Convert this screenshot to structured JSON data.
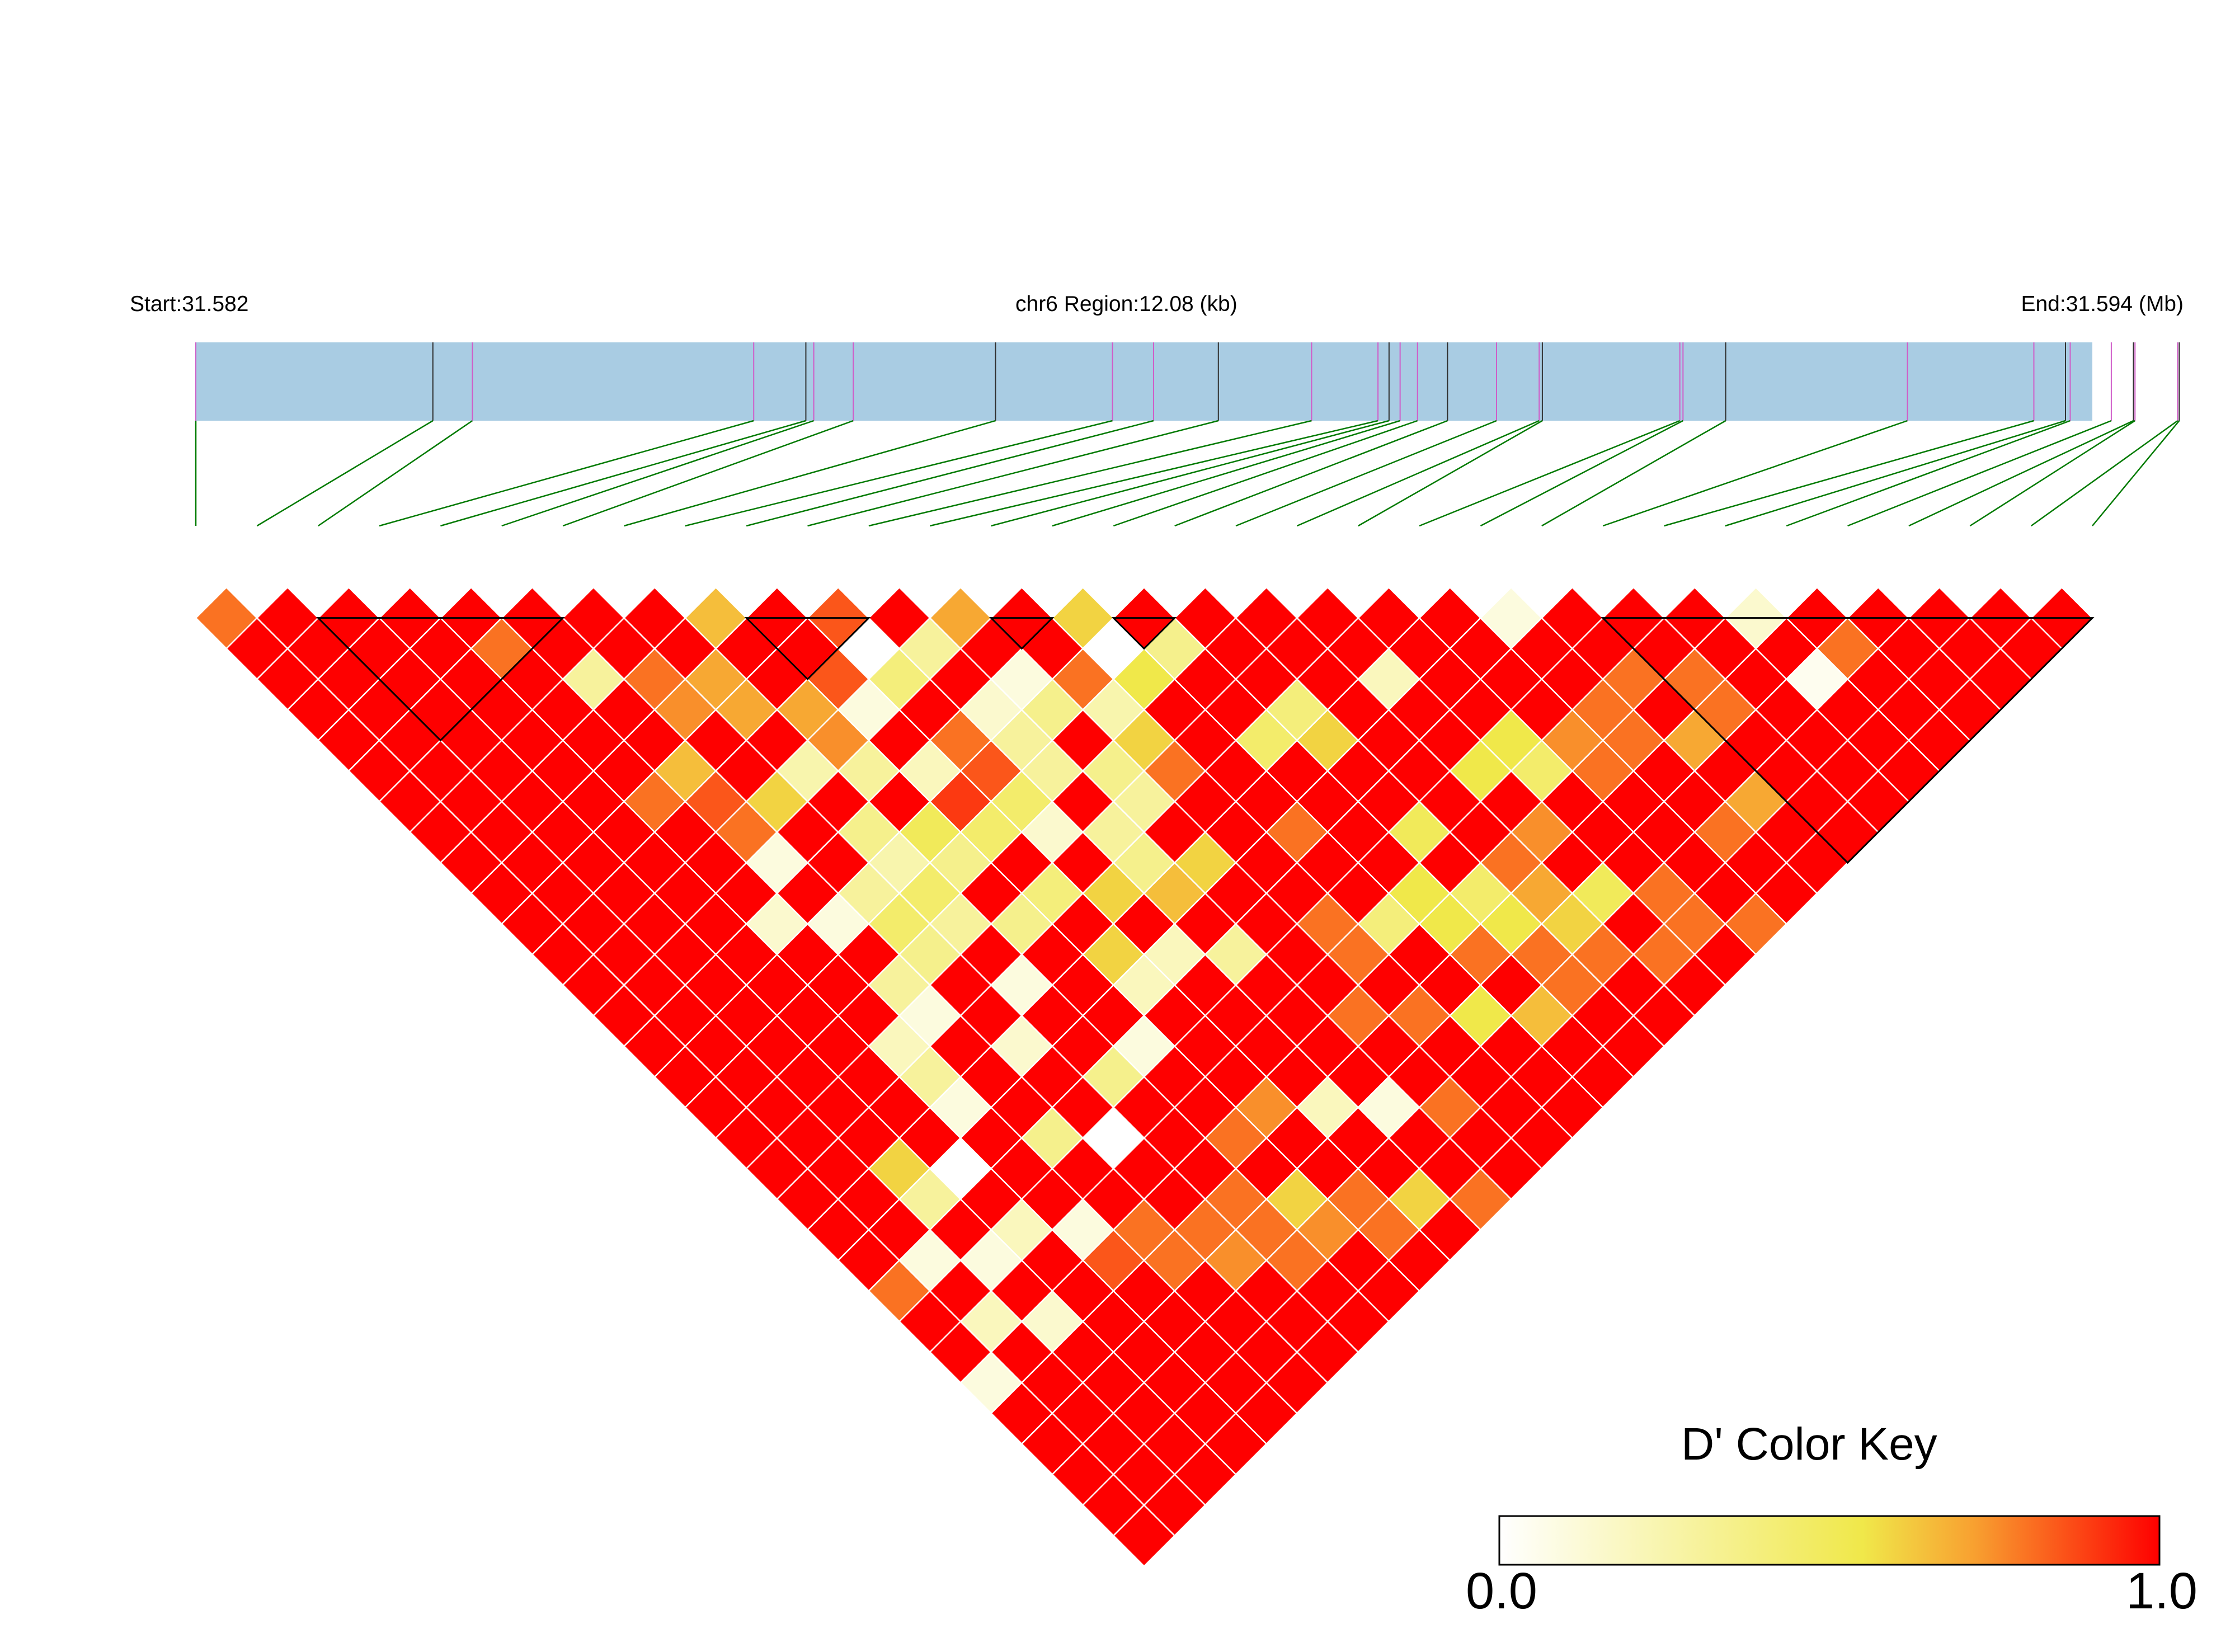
{
  "header": {
    "start_label": "Start:31.582",
    "region_label": "chr6 Region:12.08 (kb)",
    "end_label": "End:31.594 (Mb)"
  },
  "color_key": {
    "title": "D' Color Key",
    "min_label": "0.0",
    "max_label": "1.0",
    "colors": [
      "#ffffff",
      "#f0e84a",
      "#fe0000"
    ]
  },
  "colors": {
    "gene_bar": "#a9cce3",
    "snp_line_purple": "#d05cc8",
    "snp_line_dark": "#303030",
    "connector_line": "#007a00",
    "block_outline": "#000000"
  },
  "chart_data": {
    "type": "heatmap",
    "title": "",
    "xlabel": "",
    "ylabel": "",
    "region_start_mb": 31.582,
    "region_end_mb": 31.594,
    "region_length_kb": 12.08,
    "n_snps": 32,
    "snp_positions_mb": [
      31.582,
      31.5835,
      31.58375,
      31.58553,
      31.58586,
      31.58591,
      31.58616,
      31.58706,
      31.5878,
      31.58806,
      31.58847,
      31.58906,
      31.58948,
      31.58955,
      31.58962,
      31.58973,
      31.58992,
      31.59023,
      31.5905,
      31.59052,
      31.59139,
      31.59141,
      31.59168,
      31.59283,
      31.59363,
      31.59383,
      31.59386,
      31.59412,
      31.59426,
      31.59427,
      31.59454,
      31.59455
    ],
    "ld_blocks": [
      {
        "first_snp": 3,
        "last_snp": 7
      },
      {
        "first_snp": 10,
        "last_snp": 12
      },
      {
        "first_snp": 14,
        "last_snp": 15
      },
      {
        "first_snp": 16,
        "last_snp": 17
      },
      {
        "first_snp": 24,
        "last_snp": 32
      }
    ],
    "d_prime_min": 0.0,
    "d_prime_max": 1.0,
    "d_prime_nondefault_comment": "",
    "d_prime_default": 1.0,
    "d_prime_pairs": [
      [
        1,
        2,
        0.8
      ],
      [
        9,
        10,
        0.65
      ],
      [
        11,
        12,
        0.85
      ],
      [
        22,
        23,
        0.1
      ],
      [
        26,
        27,
        0.15
      ],
      [
        11,
        13,
        0.0
      ],
      [
        12,
        14,
        0.3
      ],
      [
        16,
        18,
        0.35
      ],
      [
        13,
        14,
        0.7
      ],
      [
        11,
        14,
        0.4
      ],
      [
        5,
        7,
        0.8
      ],
      [
        15,
        17,
        0.0
      ],
      [
        15,
        16,
        0.6
      ],
      [
        7,
        10,
        0.8
      ],
      [
        8,
        11,
        0.7
      ],
      [
        19,
        22,
        0.2
      ],
      [
        11,
        16,
        0.8
      ],
      [
        10,
        13,
        0.85
      ],
      [
        7,
        11,
        0.75
      ],
      [
        8,
        12,
        0.7
      ],
      [
        13,
        16,
        0.1
      ],
      [
        17,
        21,
        0.4
      ],
      [
        6,
        9,
        0.3
      ],
      [
        14,
        17,
        0.8
      ],
      [
        15,
        18,
        0.55
      ],
      [
        9,
        14,
        0.75
      ],
      [
        13,
        17,
        0.35
      ],
      [
        14,
        18,
        0.25
      ],
      [
        12,
        18,
        0.3
      ],
      [
        10,
        16,
        0.2
      ],
      [
        10,
        14,
        0.1
      ],
      [
        8,
        14,
        0.25
      ],
      [
        11,
        18,
        0.45
      ],
      [
        20,
        25,
        0.55
      ],
      [
        12,
        16,
        0.15
      ],
      [
        6,
        12,
        0.65
      ],
      [
        7,
        14,
        0.6
      ],
      [
        9,
        13,
        0.7
      ],
      [
        5,
        12,
        0.8
      ],
      [
        6,
        13,
        0.85
      ],
      [
        14,
        19,
        0.6
      ],
      [
        14,
        20,
        0.8
      ],
      [
        16,
        21,
        0.45
      ],
      [
        12,
        17,
        0.3
      ],
      [
        10,
        17,
        0.9
      ],
      [
        11,
        17,
        0.85
      ],
      [
        17,
        22,
        0.6
      ],
      [
        27,
        29,
        0.8
      ],
      [
        6,
        14,
        0.8
      ],
      [
        8,
        16,
        0.35
      ],
      [
        9,
        15,
        0.3
      ],
      [
        13,
        19,
        0.35
      ],
      [
        10,
        18,
        0.45
      ],
      [
        6,
        15,
        0.1
      ],
      [
        7,
        14,
        0.6
      ],
      [
        9,
        17,
        0.5
      ],
      [
        11,
        19,
        0.15
      ],
      [
        12,
        20,
        0.3
      ],
      [
        13,
        20,
        0.3
      ],
      [
        17,
        25,
        0.5
      ],
      [
        22,
        26,
        0.8
      ],
      [
        21,
        27,
        0.8
      ],
      [
        24,
        28,
        0.8
      ],
      [
        26,
        29,
        0.05
      ],
      [
        7,
        17,
        0.3
      ],
      [
        8,
        17,
        0.25
      ],
      [
        9,
        18,
        0.35
      ],
      [
        10,
        20,
        0.4
      ],
      [
        12,
        21,
        0.35
      ],
      [
        13,
        22,
        0.2
      ],
      [
        19,
        25,
        0.55
      ],
      [
        20,
        26,
        0.45
      ],
      [
        16,
        26,
        0.55
      ],
      [
        21,
        26,
        0.75
      ],
      [
        23,
        26,
        0.8
      ],
      [
        24,
        27,
        0.8
      ],
      [
        5,
        16,
        0.15
      ],
      [
        6,
        17,
        0.1
      ],
      [
        8,
        18,
        0.45
      ],
      [
        7,
        18,
        0.45
      ],
      [
        15,
        23,
        0.8
      ],
      [
        11,
        21,
        0.6
      ],
      [
        17,
        27,
        0.45
      ],
      [
        18,
        27,
        0.8
      ],
      [
        19,
        27,
        0.75
      ],
      [
        22,
        27,
        0.8
      ],
      [
        23,
        28,
        0.7
      ],
      [
        8,
        19,
        0.3
      ],
      [
        7,
        19,
        0.35
      ],
      [
        6,
        19,
        0.3
      ],
      [
        9,
        20,
        0.35
      ],
      [
        12,
        22,
        0.65
      ],
      [
        13,
        22,
        0.6
      ],
      [
        15,
        26,
        0.4
      ],
      [
        16,
        27,
        0.55
      ],
      [
        17,
        28,
        0.55
      ],
      [
        18,
        28,
        0.7
      ],
      [
        6,
        20,
        0.1
      ],
      [
        8,
        21,
        0.1
      ],
      [
        10,
        22,
        0.6
      ],
      [
        11,
        23,
        0.2
      ],
      [
        14,
        25,
        0.8
      ],
      [
        16,
        28,
        0.8
      ],
      [
        18,
        29,
        0.6
      ],
      [
        19,
        29,
        0.5
      ],
      [
        20,
        30,
        0.8
      ],
      [
        22,
        30,
        0.8
      ],
      [
        23,
        30,
        0.7
      ],
      [
        5,
        20,
        0.2
      ],
      [
        5,
        21,
        0.3
      ],
      [
        7,
        22,
        0.15
      ],
      [
        10,
        23,
        0.2
      ],
      [
        12,
        24,
        0.3
      ],
      [
        14,
        26,
        0.8
      ],
      [
        17,
        29,
        0.8
      ],
      [
        18,
        30,
        0.8
      ],
      [
        20,
        31,
        0.8
      ],
      [
        5,
        22,
        0.1
      ],
      [
        8,
        24,
        0.35
      ],
      [
        9,
        24,
        0.1
      ],
      [
        13,
        27,
        0.8
      ],
      [
        14,
        28,
        0.8
      ],
      [
        15,
        29,
        0.55
      ],
      [
        16,
        30,
        0.65
      ],
      [
        17,
        30,
        0.8
      ],
      [
        19,
        31,
        0.8
      ],
      [
        21,
        32,
        0.8
      ],
      [
        3,
        22,
        0.6
      ],
      [
        4,
        23,
        0.0
      ],
      [
        6,
        24,
        0.35
      ],
      [
        7,
        25,
        0.0
      ],
      [
        9,
        27,
        0.8
      ],
      [
        10,
        27,
        0.75
      ],
      [
        11,
        28,
        0.2
      ],
      [
        12,
        29,
        0.1
      ],
      [
        13,
        30,
        0.8
      ],
      [
        3,
        23,
        0.3
      ],
      [
        5,
        26,
        0.1
      ],
      [
        8,
        28,
        0.8
      ],
      [
        9,
        29,
        0.6
      ],
      [
        10,
        30,
        0.8
      ],
      [
        11,
        31,
        0.6
      ],
      [
        12,
        32,
        0.8
      ],
      [
        4,
        25,
        0.2
      ],
      [
        6,
        27,
        0.8
      ],
      [
        7,
        28,
        0.8
      ],
      [
        8,
        29,
        0.8
      ],
      [
        9,
        30,
        0.75
      ],
      [
        10,
        31,
        0.8
      ],
      [
        2,
        24,
        0.1
      ],
      [
        3,
        25,
        0.1
      ],
      [
        5,
        27,
        0.85
      ],
      [
        6,
        28,
        0.8
      ],
      [
        7,
        29,
        0.75
      ],
      [
        8,
        30,
        0.8
      ],
      [
        1,
        24,
        0.8
      ],
      [
        2,
        26,
        0.2
      ],
      [
        3,
        27,
        0.15
      ],
      [
        1,
        27,
        0.1
      ]
    ]
  }
}
